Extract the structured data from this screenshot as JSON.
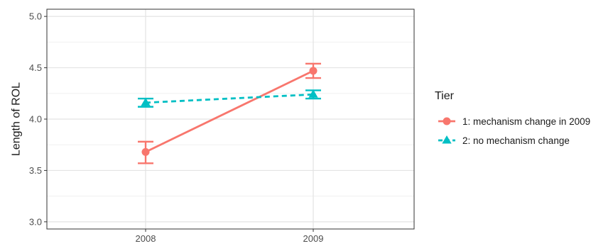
{
  "chart_data": {
    "type": "line",
    "title": "",
    "xlabel": "",
    "ylabel": "Length of ROL",
    "categories": [
      "2008",
      "2009"
    ],
    "ylim": [
      2.93,
      5.07
    ],
    "yticks": [
      "3.0",
      "3.5",
      "4.0",
      "4.5",
      "5.0"
    ],
    "grid": true,
    "legend": {
      "title": "Tier",
      "position": "right"
    },
    "series": [
      {
        "name": "1: mechanism change in 2009",
        "color": "#F8766D",
        "linestyle": "solid",
        "marker": "circle",
        "values": [
          3.68,
          4.47
        ],
        "error_low": [
          3.57,
          4.4
        ],
        "error_high": [
          3.78,
          4.54
        ]
      },
      {
        "name": "2: no mechanism change",
        "color": "#00BFC4",
        "linestyle": "dashed",
        "marker": "triangle",
        "values": [
          4.16,
          4.24
        ],
        "error_low": [
          4.12,
          4.2
        ],
        "error_high": [
          4.2,
          4.28
        ]
      }
    ]
  }
}
